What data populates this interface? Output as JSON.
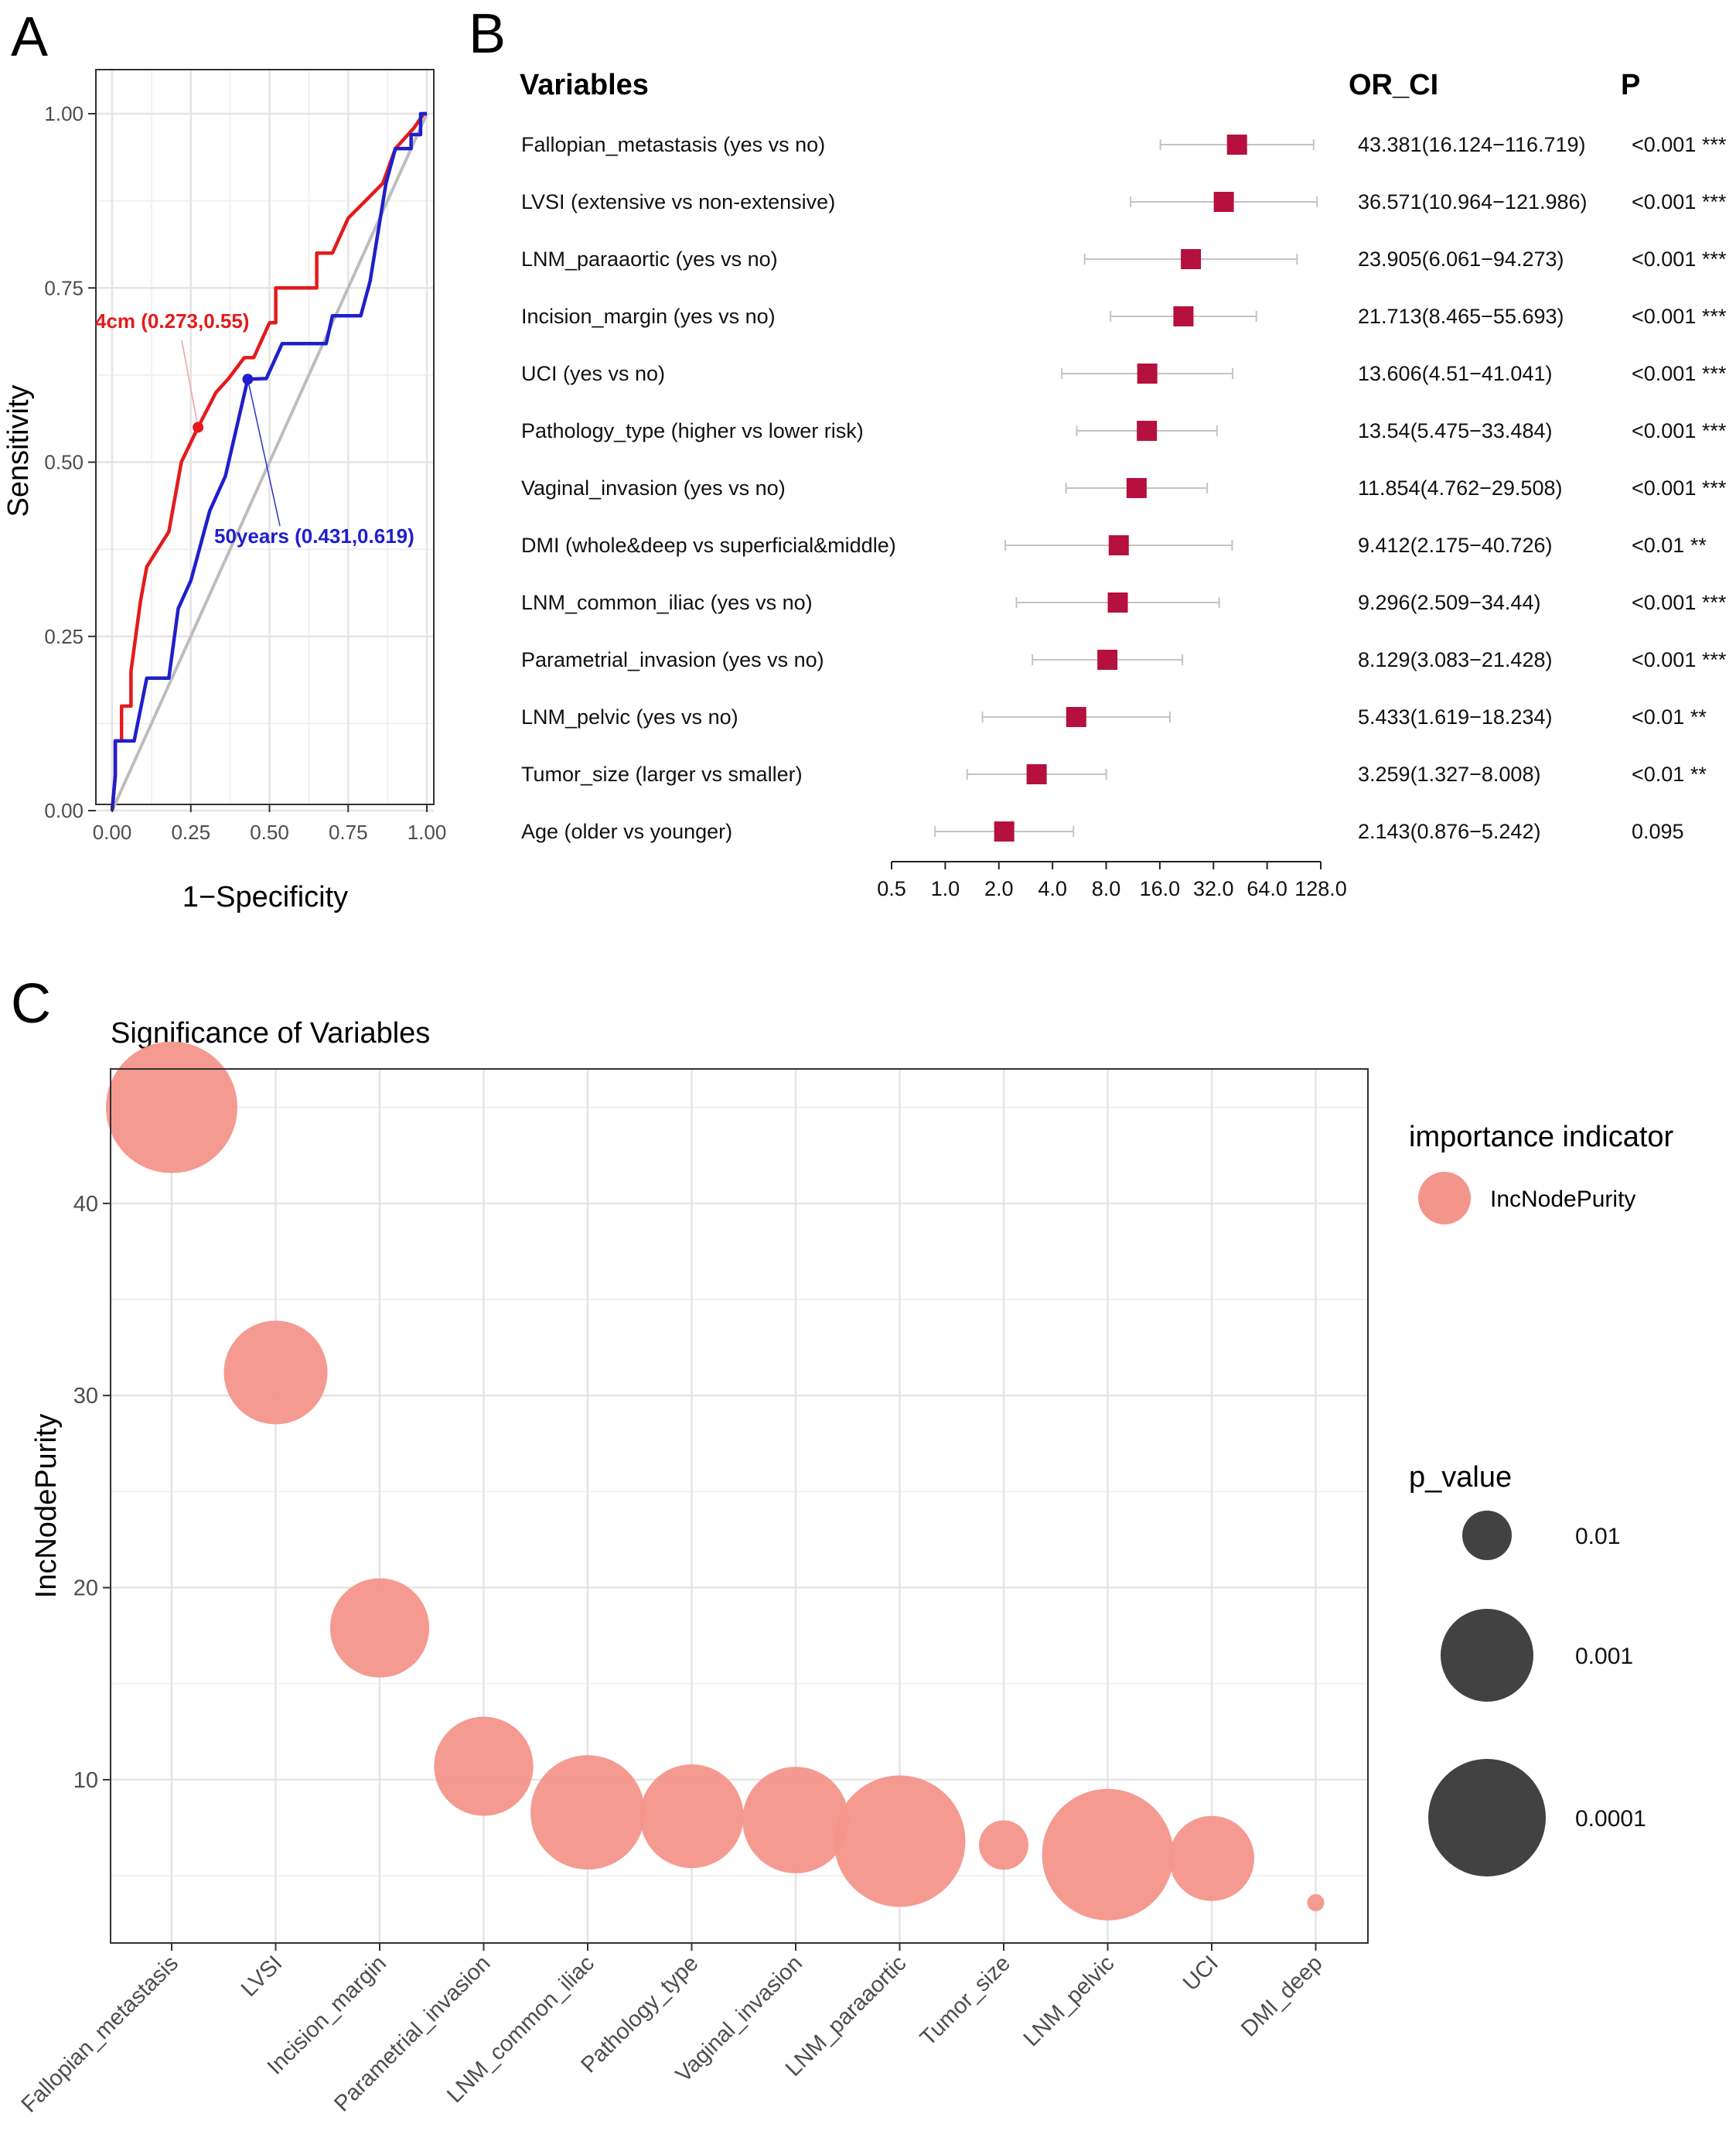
{
  "panel_letters": {
    "a": "A",
    "b": "B",
    "c": "C"
  },
  "colors": {
    "red": "#e41a1c",
    "blue": "#1f1fcc",
    "diag": "#bdbdbd",
    "square": "#b5103e",
    "bubble": "#f4958b",
    "legend_dot": "#424242"
  },
  "chart_data": [
    {
      "id": "roc",
      "type": "line",
      "xlabel": "1−Specificity",
      "ylabel": "Sensitivity",
      "xlim": [
        0,
        1
      ],
      "ylim": [
        0,
        1
      ],
      "ticks": [
        "0.00",
        "0.25",
        "0.50",
        "0.75",
        "1.00"
      ],
      "tick_values": [
        0,
        0.25,
        0.5,
        0.75,
        1
      ],
      "series": [
        {
          "name": "4cm",
          "color": "#e41a1c",
          "points": [
            [
              0,
              0
            ],
            [
              0.01,
              0.05
            ],
            [
              0.01,
              0.1
            ],
            [
              0.03,
              0.1
            ],
            [
              0.03,
              0.15
            ],
            [
              0.06,
              0.15
            ],
            [
              0.06,
              0.2
            ],
            [
              0.09,
              0.3
            ],
            [
              0.11,
              0.35
            ],
            [
              0.18,
              0.4
            ],
            [
              0.22,
              0.5
            ],
            [
              0.273,
              0.55
            ],
            [
              0.33,
              0.6
            ],
            [
              0.37,
              0.62
            ],
            [
              0.42,
              0.65
            ],
            [
              0.45,
              0.65
            ],
            [
              0.5,
              0.7
            ],
            [
              0.52,
              0.7
            ],
            [
              0.52,
              0.75
            ],
            [
              0.65,
              0.75
            ],
            [
              0.65,
              0.8
            ],
            [
              0.7,
              0.8
            ],
            [
              0.75,
              0.85
            ],
            [
              0.86,
              0.9
            ],
            [
              0.9,
              0.95
            ],
            [
              0.96,
              0.98
            ],
            [
              0.99,
              1
            ],
            [
              1,
              1
            ]
          ]
        },
        {
          "name": "50years",
          "color": "#1f1fcc",
          "points": [
            [
              0,
              0
            ],
            [
              0.01,
              0.05
            ],
            [
              0.01,
              0.1
            ],
            [
              0.07,
              0.1
            ],
            [
              0.11,
              0.19
            ],
            [
              0.18,
              0.19
            ],
            [
              0.21,
              0.29
            ],
            [
              0.25,
              0.33
            ],
            [
              0.31,
              0.43
            ],
            [
              0.36,
              0.48
            ],
            [
              0.431,
              0.619
            ],
            [
              0.49,
              0.62
            ],
            [
              0.49,
              0.62
            ],
            [
              0.54,
              0.67
            ],
            [
              0.68,
              0.67
            ],
            [
              0.7,
              0.71
            ],
            [
              0.79,
              0.71
            ],
            [
              0.82,
              0.76
            ],
            [
              0.87,
              0.9
            ],
            [
              0.9,
              0.95
            ],
            [
              0.95,
              0.95
            ],
            [
              0.95,
              0.97
            ],
            [
              0.98,
              0.97
            ],
            [
              0.98,
              1
            ],
            [
              1,
              1
            ]
          ]
        }
      ],
      "annotations": [
        {
          "label": "4cm (0.273,0.55)",
          "x": 0.273,
          "y": 0.55
        },
        {
          "label": "50years (0.431,0.619)",
          "x": 0.431,
          "y": 0.619
        }
      ]
    },
    {
      "id": "forest",
      "type": "forest",
      "headers": {
        "variables": "Variables",
        "or_ci": "OR_CI",
        "p": "P"
      },
      "xscale": "log2",
      "xlim": [
        0.5,
        128
      ],
      "x_ticks": [
        0.5,
        1,
        2,
        4,
        8,
        16,
        32,
        64,
        128
      ],
      "x_tick_labels": [
        "0.5",
        "1.0",
        "2.0",
        "4.0",
        "8.0",
        "16.0",
        "32.0",
        "64.0",
        "128.0"
      ],
      "rows": [
        {
          "label": "Fallopian_metastasis (yes vs no)",
          "or": 43.381,
          "lo": 16.124,
          "hi": 116.719,
          "or_ci": "43.381(16.124−116.719)",
          "p": "<0.001 ***"
        },
        {
          "label": "LVSI (extensive vs non-extensive)",
          "or": 36.571,
          "lo": 10.964,
          "hi": 121.986,
          "or_ci": "36.571(10.964−121.986)",
          "p": "<0.001 ***"
        },
        {
          "label": "LNM_paraaortic (yes vs no)",
          "or": 23.905,
          "lo": 6.061,
          "hi": 94.273,
          "or_ci": "23.905(6.061−94.273)",
          "p": "<0.001 ***"
        },
        {
          "label": "Incision_margin (yes vs no)",
          "or": 21.713,
          "lo": 8.465,
          "hi": 55.693,
          "or_ci": "21.713(8.465−55.693)",
          "p": "<0.001 ***"
        },
        {
          "label": "UCI (yes vs no)",
          "or": 13.606,
          "lo": 4.51,
          "hi": 41.041,
          "or_ci": "13.606(4.51−41.041)",
          "p": "<0.001 ***"
        },
        {
          "label": "Pathology_type (higher vs lower risk)",
          "or": 13.54,
          "lo": 5.475,
          "hi": 33.484,
          "or_ci": "13.54(5.475−33.484)",
          "p": "<0.001 ***"
        },
        {
          "label": "Vaginal_invasion (yes vs no)",
          "or": 11.854,
          "lo": 4.762,
          "hi": 29.508,
          "or_ci": "11.854(4.762−29.508)",
          "p": "<0.001 ***"
        },
        {
          "label": "DMI (whole&deep vs superficial&middle)",
          "or": 9.412,
          "lo": 2.175,
          "hi": 40.726,
          "or_ci": "9.412(2.175−40.726)",
          "p": "<0.01 **"
        },
        {
          "label": "LNM_common_iliac (yes vs no)",
          "or": 9.296,
          "lo": 2.509,
          "hi": 34.44,
          "or_ci": "9.296(2.509−34.44)",
          "p": "<0.001 ***"
        },
        {
          "label": "Parametrial_invasion (yes vs no)",
          "or": 8.129,
          "lo": 3.083,
          "hi": 21.428,
          "or_ci": "8.129(3.083−21.428)",
          "p": "<0.001 ***"
        },
        {
          "label": "LNM_pelvic (yes vs no)",
          "or": 5.433,
          "lo": 1.619,
          "hi": 18.234,
          "or_ci": "5.433(1.619−18.234)",
          "p": "<0.01 **"
        },
        {
          "label": "Tumor_size (larger vs smaller)",
          "or": 3.259,
          "lo": 1.327,
          "hi": 8.008,
          "or_ci": "3.259(1.327−8.008)",
          "p": "<0.01 **"
        },
        {
          "label": "Age (older vs younger)",
          "or": 2.143,
          "lo": 0.876,
          "hi": 5.242,
          "or_ci": "2.143(0.876−5.242)",
          "p": "0.095"
        }
      ]
    },
    {
      "id": "bubble",
      "type": "scatter",
      "title": "Significance of Variables",
      "xlabel": "",
      "ylabel": "IncNodePurity",
      "ylim": [
        1.5,
        47
      ],
      "y_ticks": [
        10,
        20,
        30,
        40
      ],
      "categories": [
        "Fallopian_metastasis",
        "LVSI",
        "Incision_margin",
        "Parametrial_invasion",
        "LNM_common_iliac",
        "Pathology_type",
        "Vaginal_invasion",
        "LNM_paraaortic",
        "Tumor_size",
        "LNM_pelvic",
        "UCI",
        "DMI_deep"
      ],
      "values": [
        45.0,
        31.2,
        17.9,
        10.7,
        8.3,
        8.1,
        7.9,
        6.8,
        6.6,
        6.1,
        5.9,
        3.6
      ],
      "p_values": [
        7e-05,
        0.0003,
        0.0004,
        0.0004,
        0.00015,
        0.0003,
        0.00025,
        8e-05,
        0.01,
        9e-05,
        0.001,
        0.1
      ],
      "legend": {
        "color_title": "importance indicator",
        "color_label": "IncNodePurity",
        "size_title": "p_value",
        "size_entries": [
          {
            "label": "0.01",
            "p": 0.01
          },
          {
            "label": "0.001",
            "p": 0.001
          },
          {
            "label": "0.0001",
            "p": 0.0001
          }
        ]
      }
    }
  ]
}
